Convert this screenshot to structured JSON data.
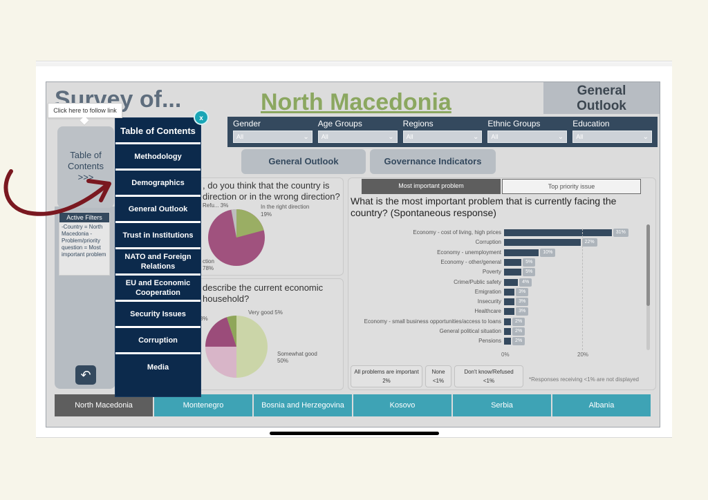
{
  "header": {
    "survey_title": "Survey of...",
    "country_title": "North Macedonia",
    "section_title": "General Outlook"
  },
  "filters": [
    {
      "label": "Gender",
      "value": "All"
    },
    {
      "label": "Age Groups",
      "value": "All"
    },
    {
      "label": "Regions",
      "value": "All"
    },
    {
      "label": "Ethnic Groups",
      "value": "All"
    },
    {
      "label": "Education",
      "value": "All"
    }
  ],
  "nav_buttons": {
    "general_outlook": "General Outlook",
    "governance": "Governance Indicators"
  },
  "toc_tab": {
    "line1": "Table of",
    "line2": "Contents",
    "line3": ">>>"
  },
  "tooltip": "Click here to follow link",
  "active_filters": {
    "title": "Active Filters",
    "body": "-Country = North Macedonia - Problem/priority question = Most important problem"
  },
  "toc_panel": {
    "close": "x",
    "title": "Table of Contents",
    "items": [
      "Methodology",
      "Demographics",
      "General Outlook",
      "Trust in Institutions",
      "NATO and Foreign Relations",
      "EU and Economic Cooperation",
      "Security Issues",
      "Corruption",
      "Media"
    ]
  },
  "question1": {
    "text_line1": ", do you think that the country is",
    "text_line2": "direction or in the wrong direction?",
    "label_refused": "Refu... 3%",
    "label_right": "In the right direction",
    "label_right_val": "19%",
    "label_wrong": "ction",
    "label_wrong_val": "78%"
  },
  "question2": {
    "text_line1": "describe the current economic",
    "text_line2": "household?",
    "label_left": "8%",
    "label_very_good": "Very good 5%",
    "label_somewhat": "Somewhat good",
    "label_somewhat_val": "50%"
  },
  "toggles": {
    "most_important": "Most important problem",
    "top_priority": "Top priority issue"
  },
  "bar_chart_question": "What is the most important problem that is currently facing the country? (Spontaneous response)",
  "chart_data": {
    "type": "bar",
    "orientation": "horizontal",
    "categories": [
      "Economy - cost of living, high prices",
      "Corruption",
      "Economy - unemployment",
      "Economy - other/general",
      "Poverty",
      "Crime/Public safety",
      "Emigration",
      "Insecurity",
      "Healthcare",
      "Economy - small business opportunities/access to loans",
      "General political situation",
      "Pensions"
    ],
    "values": [
      31,
      22,
      10,
      5,
      5,
      4,
      3,
      3,
      3,
      2,
      2,
      2
    ],
    "value_labels": [
      "31%",
      "22%",
      "10%",
      "5%",
      "5%",
      "4%",
      "3%",
      "3%",
      "3%",
      "2%",
      "2%",
      "2%"
    ],
    "xlim": [
      0,
      35
    ],
    "x_ticks": [
      "0%",
      "20%"
    ]
  },
  "stat_boxes": [
    {
      "label": "All problems are important",
      "value": "2%"
    },
    {
      "label": "None",
      "value": "<1%"
    },
    {
      "label": "Don't know/Refused",
      "value": "<1%"
    }
  ],
  "footnote": "*Responses receiving <1% are not displayed",
  "country_tabs": [
    "North Macedonia",
    "Montenegro",
    "Bosnia and Herzegovina",
    "Kosovo",
    "Serbia",
    "Albania"
  ],
  "colors": {
    "navy": "#0c2a4c",
    "teal": "#3ea3b5",
    "green": "#8ba760",
    "bar": "#34495e",
    "arrow": "#7a1820"
  }
}
